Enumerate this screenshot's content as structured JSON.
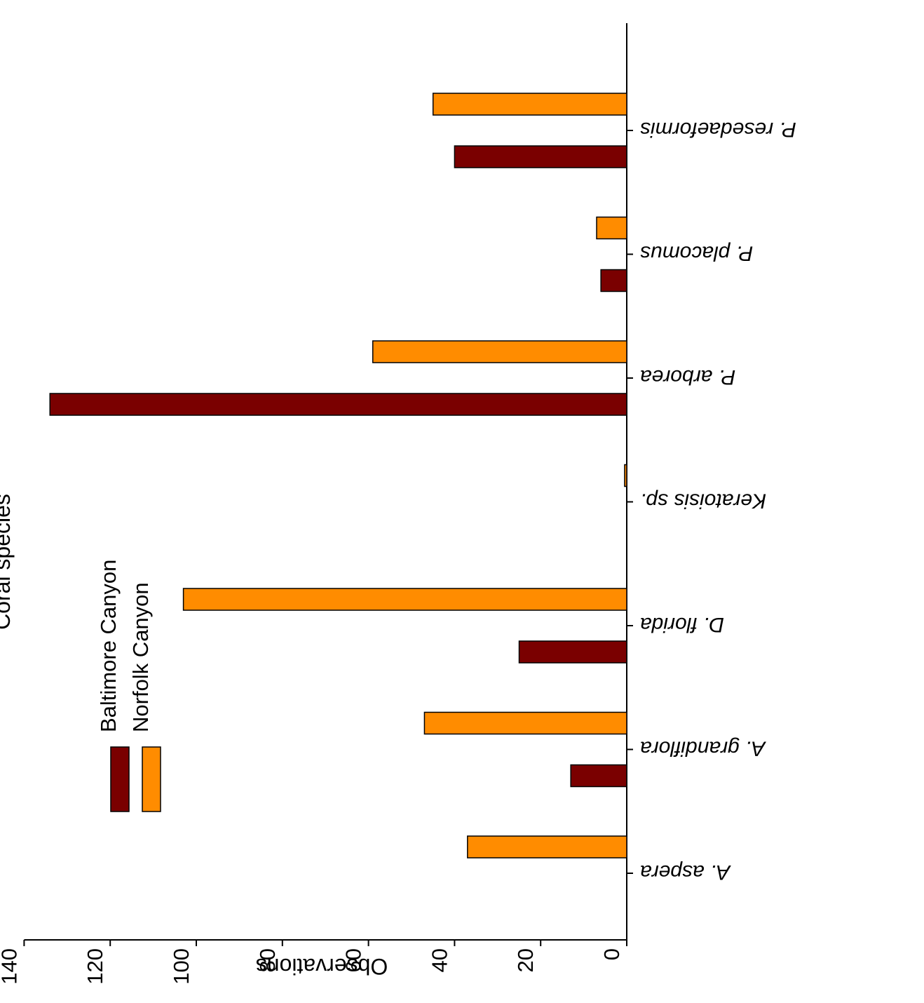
{
  "chart_data": {
    "type": "bar",
    "orientation": "horizontal",
    "categories": [
      "A. aspera",
      "A. grandiflora",
      "D. florida",
      "Keratoisis sp.",
      "P. arborea",
      "P. placomus",
      "P. resedaeformis"
    ],
    "category_labels": {
      "A. aspera": {
        "prefix": "A. ",
        "name": "aspera",
        "italic_all": true
      },
      "Keratoisis sp.": {
        "prefix": "",
        "name": "Keratoisis",
        "suffix": " sp."
      }
    },
    "series": [
      {
        "name": "Baltimore Canyon",
        "color": "#7a0000",
        "values": [
          0,
          13,
          25,
          0,
          134,
          6,
          40
        ]
      },
      {
        "name": "Norfolk Canyon",
        "color": "#ff8c00",
        "values": [
          37,
          47,
          103,
          0.5,
          59,
          7,
          45
        ]
      }
    ],
    "xlabel": "Observations",
    "ylabel": "Coral species",
    "xlim": [
      0,
      140
    ],
    "xticks": [
      "0",
      "20",
      "40",
      "60",
      "80",
      "100",
      "120",
      "140"
    ],
    "legend_position": "top-left",
    "grid": false,
    "rotated": "180 degrees"
  }
}
